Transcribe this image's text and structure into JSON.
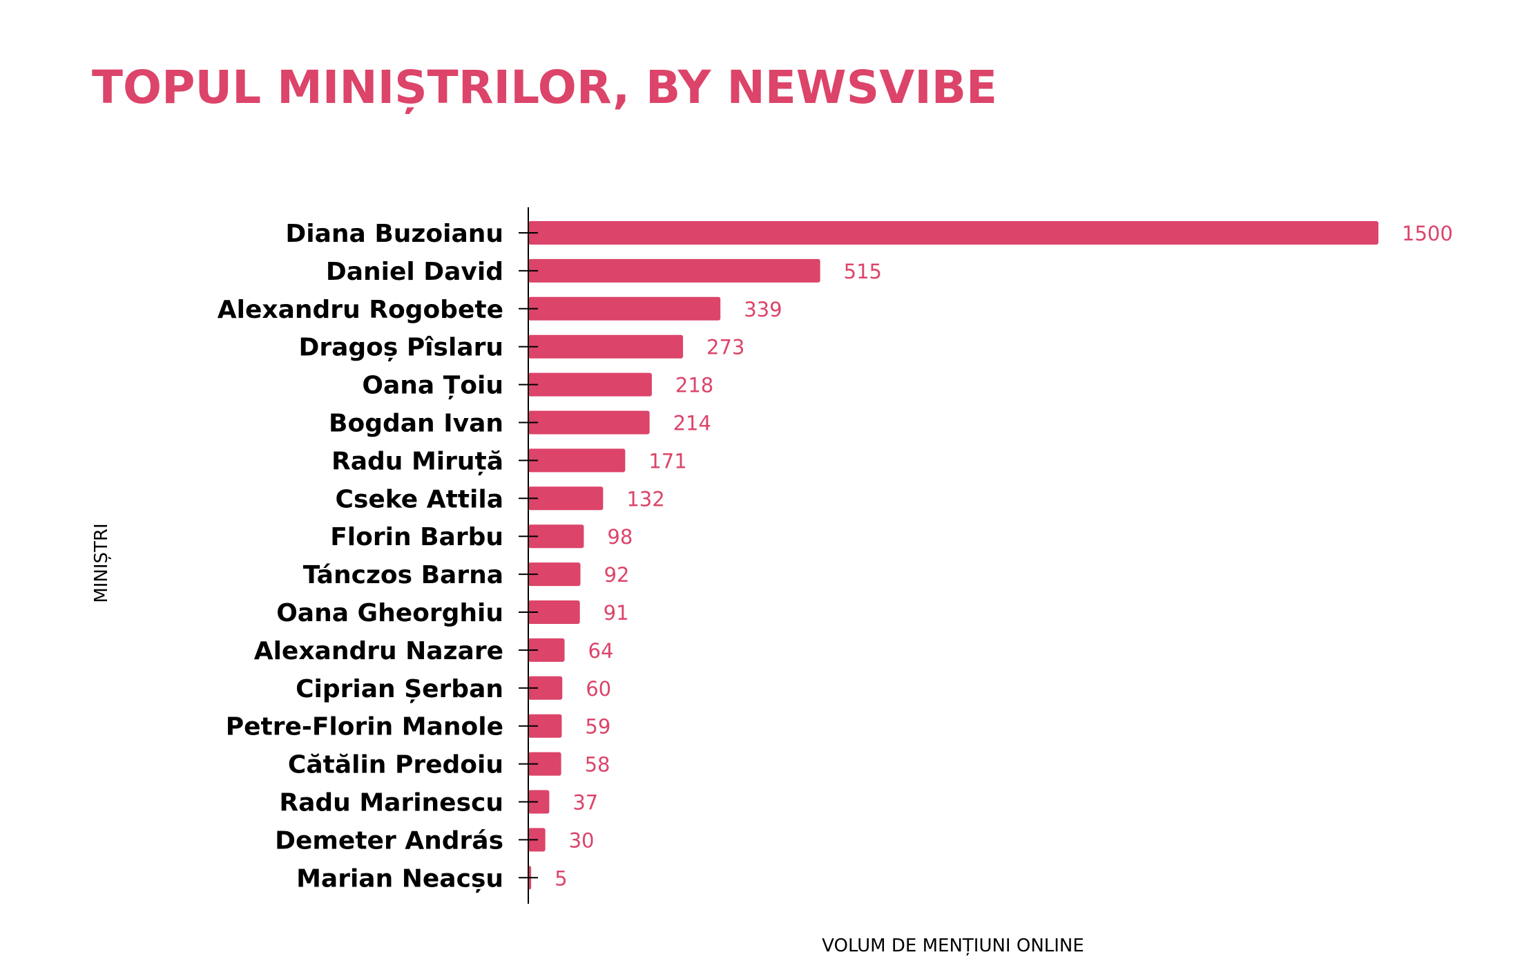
{
  "chart_data": {
    "type": "bar",
    "orientation": "horizontal",
    "title": "TOPUL MINIȘTRILOR, BY NEWSVIBE",
    "xlabel": "VOLUM DE MENȚIUNI ONLINE",
    "ylabel": "MINIȘTRI",
    "categories": [
      "Diana Buzoianu",
      "Daniel David",
      "Alexandru Rogobete",
      "Dragoș Pîslaru",
      "Oana Țoiu",
      "Bogdan Ivan",
      "Radu Miruță",
      "Cseke Attila",
      "Florin Barbu",
      "Tánczos Barna",
      "Oana Gheorghiu",
      "Alexandru Nazare",
      "Ciprian Șerban",
      "Petre-Florin Manole",
      "Cătălin Predoiu",
      "Radu Marinescu",
      "Demeter András",
      "Marian Neacșu"
    ],
    "values": [
      1500,
      515,
      339,
      273,
      218,
      214,
      171,
      132,
      98,
      92,
      91,
      64,
      60,
      59,
      58,
      37,
      30,
      5
    ],
    "xlim": [
      0,
      1500
    ],
    "grid": false,
    "data_labels": true,
    "colors": {
      "bar": "#dc4469",
      "title": "#dc4469",
      "value_label": "#dc4469",
      "text": "#000000"
    }
  }
}
